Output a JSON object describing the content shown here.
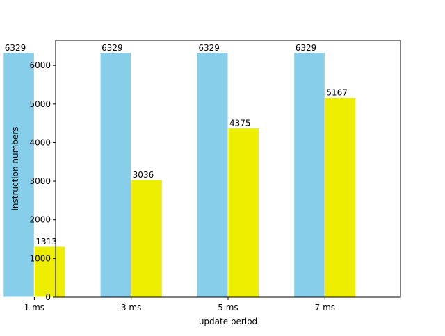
{
  "chart_data": {
    "type": "bar",
    "title": "",
    "xlabel": "update period",
    "ylabel": "instruction numbers",
    "categories": [
      "1 ms",
      "3 ms",
      "5 ms",
      "7 ms"
    ],
    "series": [
      {
        "values": [
          6329,
          6329,
          6329,
          6329
        ],
        "color": "#87ceeb"
      },
      {
        "values": [
          1313,
          3036,
          4375,
          5167
        ],
        "color": "#eeee00"
      }
    ],
    "ylim": [
      0,
      6650
    ],
    "yticks": [
      0,
      1000,
      2000,
      3000,
      4000,
      5000,
      6000
    ],
    "grid": false,
    "legend": "none"
  }
}
